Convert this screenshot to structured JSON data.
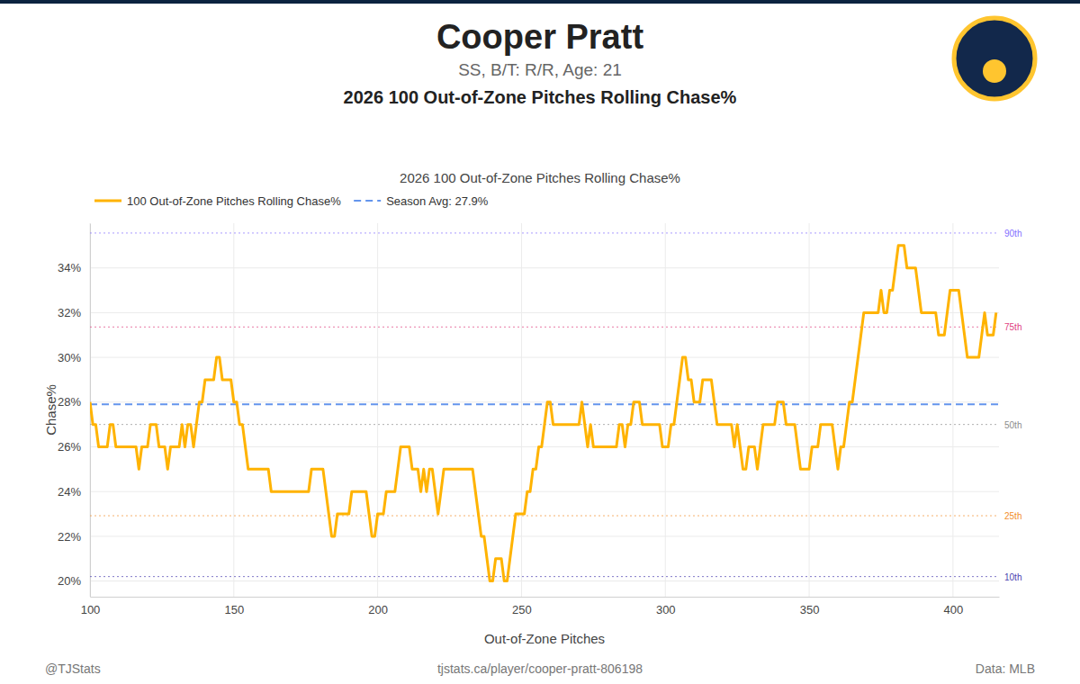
{
  "chart_data": {
    "type": "line",
    "header": {
      "player": "Cooper Pratt",
      "info": "SS, B/T: R/R, Age: 21",
      "heading": "2026 100 Out-of-Zone Pitches Rolling Chase%"
    },
    "title": "2026 100 Out-of-Zone Pitches Rolling Chase%",
    "x_label": "Out-of-Zone Pitches",
    "y_label": "Chase%",
    "footer": {
      "left": "@TJStats",
      "center": "tjstats.ca/player/cooper-pratt-806198",
      "right": "Data: MLB"
    },
    "x": [
      100,
      101,
      102,
      103,
      104,
      105,
      106,
      107,
      108,
      109,
      110,
      111,
      112,
      113,
      114,
      115,
      116,
      117,
      118,
      119,
      120,
      121,
      122,
      123,
      124,
      125,
      126,
      127,
      128,
      129,
      130,
      131,
      132,
      133,
      134,
      135,
      136,
      137,
      138,
      139,
      140,
      141,
      142,
      143,
      144,
      145,
      146,
      147,
      148,
      149,
      150,
      151,
      152,
      153,
      154,
      155,
      156,
      157,
      158,
      159,
      160,
      161,
      162,
      163,
      164,
      165,
      166,
      167,
      168,
      169,
      170,
      171,
      172,
      173,
      174,
      175,
      176,
      177,
      178,
      179,
      180,
      181,
      182,
      183,
      184,
      185,
      186,
      187,
      188,
      189,
      190,
      191,
      192,
      193,
      194,
      195,
      196,
      197,
      198,
      199,
      200,
      201,
      202,
      203,
      204,
      205,
      206,
      207,
      208,
      209,
      210,
      211,
      212,
      213,
      214,
      215,
      216,
      217,
      218,
      219,
      220,
      221,
      222,
      223,
      224,
      225,
      226,
      227,
      228,
      229,
      230,
      231,
      232,
      233,
      234,
      235,
      236,
      237,
      238,
      239,
      240,
      241,
      242,
      243,
      244,
      245,
      246,
      247,
      248,
      249,
      250,
      251,
      252,
      253,
      254,
      255,
      256,
      257,
      258,
      259,
      260,
      261,
      262,
      263,
      264,
      265,
      266,
      267,
      268,
      269,
      270,
      271,
      272,
      273,
      274,
      275,
      276,
      277,
      278,
      279,
      280,
      281,
      282,
      283,
      284,
      285,
      286,
      287,
      288,
      289,
      290,
      291,
      292,
      293,
      294,
      295,
      296,
      297,
      298,
      299,
      300,
      301,
      302,
      303,
      304,
      305,
      306,
      307,
      308,
      309,
      310,
      311,
      312,
      313,
      314,
      315,
      316,
      317,
      318,
      319,
      320,
      321,
      322,
      323,
      324,
      325,
      326,
      327,
      328,
      329,
      330,
      331,
      332,
      333,
      334,
      335,
      336,
      337,
      338,
      339,
      340,
      341,
      342,
      343,
      344,
      345,
      346,
      347,
      348,
      349,
      350,
      351,
      352,
      353,
      354,
      355,
      356,
      357,
      358,
      359,
      360,
      361,
      362,
      363,
      364,
      365,
      366,
      367,
      368,
      369,
      370,
      371,
      372,
      373,
      374,
      375,
      376,
      377,
      378,
      379,
      380,
      381,
      382,
      383,
      384,
      385,
      386,
      387,
      388,
      389,
      390,
      391,
      392,
      393,
      394,
      395,
      396,
      397,
      398,
      399,
      400,
      401,
      402,
      403,
      404,
      405,
      406,
      407,
      408,
      409,
      410,
      411,
      412,
      413,
      414,
      415
    ],
    "series": [
      {
        "name": "100 Out-of-Zone Pitches Rolling Chase%",
        "color": "#FFB300",
        "line_style": "solid",
        "values": [
          28,
          27,
          27,
          26,
          26,
          26,
          26,
          27,
          27,
          26,
          26,
          26,
          26,
          26,
          26,
          26,
          26,
          25,
          26,
          26,
          26,
          27,
          27,
          27,
          26,
          26,
          26,
          25,
          26,
          26,
          26,
          26,
          27,
          26,
          27,
          27,
          26,
          27,
          28,
          28,
          29,
          29,
          29,
          29,
          30,
          30,
          29,
          29,
          29,
          29,
          28,
          28,
          27,
          27,
          26,
          25,
          25,
          25,
          25,
          25,
          25,
          25,
          25,
          24,
          24,
          24,
          24,
          24,
          24,
          24,
          24,
          24,
          24,
          24,
          24,
          24,
          24,
          25,
          25,
          25,
          25,
          25,
          24,
          23,
          22,
          22,
          23,
          23,
          23,
          23,
          23,
          24,
          24,
          24,
          24,
          24,
          24,
          23,
          22,
          22,
          23,
          23,
          23,
          24,
          24,
          24,
          24,
          25,
          26,
          26,
          26,
          26,
          25,
          25,
          25,
          24,
          25,
          24,
          25,
          25,
          24,
          23,
          24,
          25,
          25,
          25,
          25,
          25,
          25,
          25,
          25,
          25,
          25,
          25,
          24,
          23,
          22,
          22,
          21,
          20,
          20,
          21,
          21,
          21,
          20,
          20,
          21,
          22,
          23,
          23,
          23,
          23,
          24,
          24,
          25,
          25,
          26,
          26,
          27,
          28,
          28,
          27,
          27,
          27,
          27,
          27,
          27,
          27,
          27,
          27,
          27,
          28,
          27,
          26,
          27,
          26,
          26,
          26,
          26,
          26,
          26,
          26,
          26,
          26,
          27,
          27,
          26,
          27,
          27,
          28,
          28,
          28,
          27,
          27,
          27,
          27,
          27,
          27,
          27,
          26,
          26,
          26,
          27,
          27,
          28,
          29,
          30,
          30,
          29,
          29,
          28,
          28,
          28,
          29,
          29,
          29,
          29,
          28,
          27,
          27,
          27,
          27,
          27,
          27,
          26,
          27,
          26,
          25,
          25,
          26,
          26,
          26,
          25,
          26,
          27,
          27,
          27,
          27,
          27,
          28,
          28,
          28,
          27,
          27,
          27,
          27,
          26,
          25,
          25,
          25,
          25,
          26,
          26,
          26,
          27,
          27,
          27,
          27,
          27,
          26,
          25,
          26,
          26,
          27,
          28,
          28,
          29,
          30,
          31,
          32,
          32,
          32,
          32,
          32,
          32,
          33,
          32,
          32,
          33,
          33,
          34,
          35,
          35,
          35,
          34,
          34,
          34,
          34,
          33,
          32,
          32,
          32,
          32,
          32,
          32,
          31,
          31,
          31,
          32,
          33,
          33,
          33,
          33,
          32,
          31,
          30,
          30,
          30,
          30,
          30,
          31,
          32,
          31,
          31,
          31,
          32
        ]
      }
    ],
    "reference_lines": [
      {
        "name": "Season Avg: 27.9%",
        "value": 27.9,
        "color": "#6495ED",
        "line_style": "dashed"
      }
    ],
    "percentiles": [
      {
        "label": "90th",
        "value": 35.56,
        "color": "#8470FF"
      },
      {
        "label": "75th",
        "value": 31.36,
        "color": "#E0407F"
      },
      {
        "label": "50th",
        "value": 27.0,
        "color": "#8C8C8C"
      },
      {
        "label": "25th",
        "value": 22.92,
        "color": "#F28E2B"
      },
      {
        "label": "10th",
        "value": 20.2,
        "color": "#4B3FB0"
      }
    ],
    "xlim": [
      100,
      416
    ],
    "ylim": [
      19.3,
      36.0
    ],
    "xticks": [
      100,
      150,
      200,
      250,
      300,
      350,
      400
    ],
    "yticks": [
      {
        "value": 20,
        "label": "20%"
      },
      {
        "value": 22,
        "label": "22%"
      },
      {
        "value": 24,
        "label": "24%"
      },
      {
        "value": 26,
        "label": "26%"
      },
      {
        "value": 28,
        "label": "28%"
      },
      {
        "value": 30,
        "label": "30%"
      },
      {
        "value": 32,
        "label": "32%"
      },
      {
        "value": 34,
        "label": "34%"
      }
    ],
    "grid": true,
    "legend": "top-left"
  }
}
